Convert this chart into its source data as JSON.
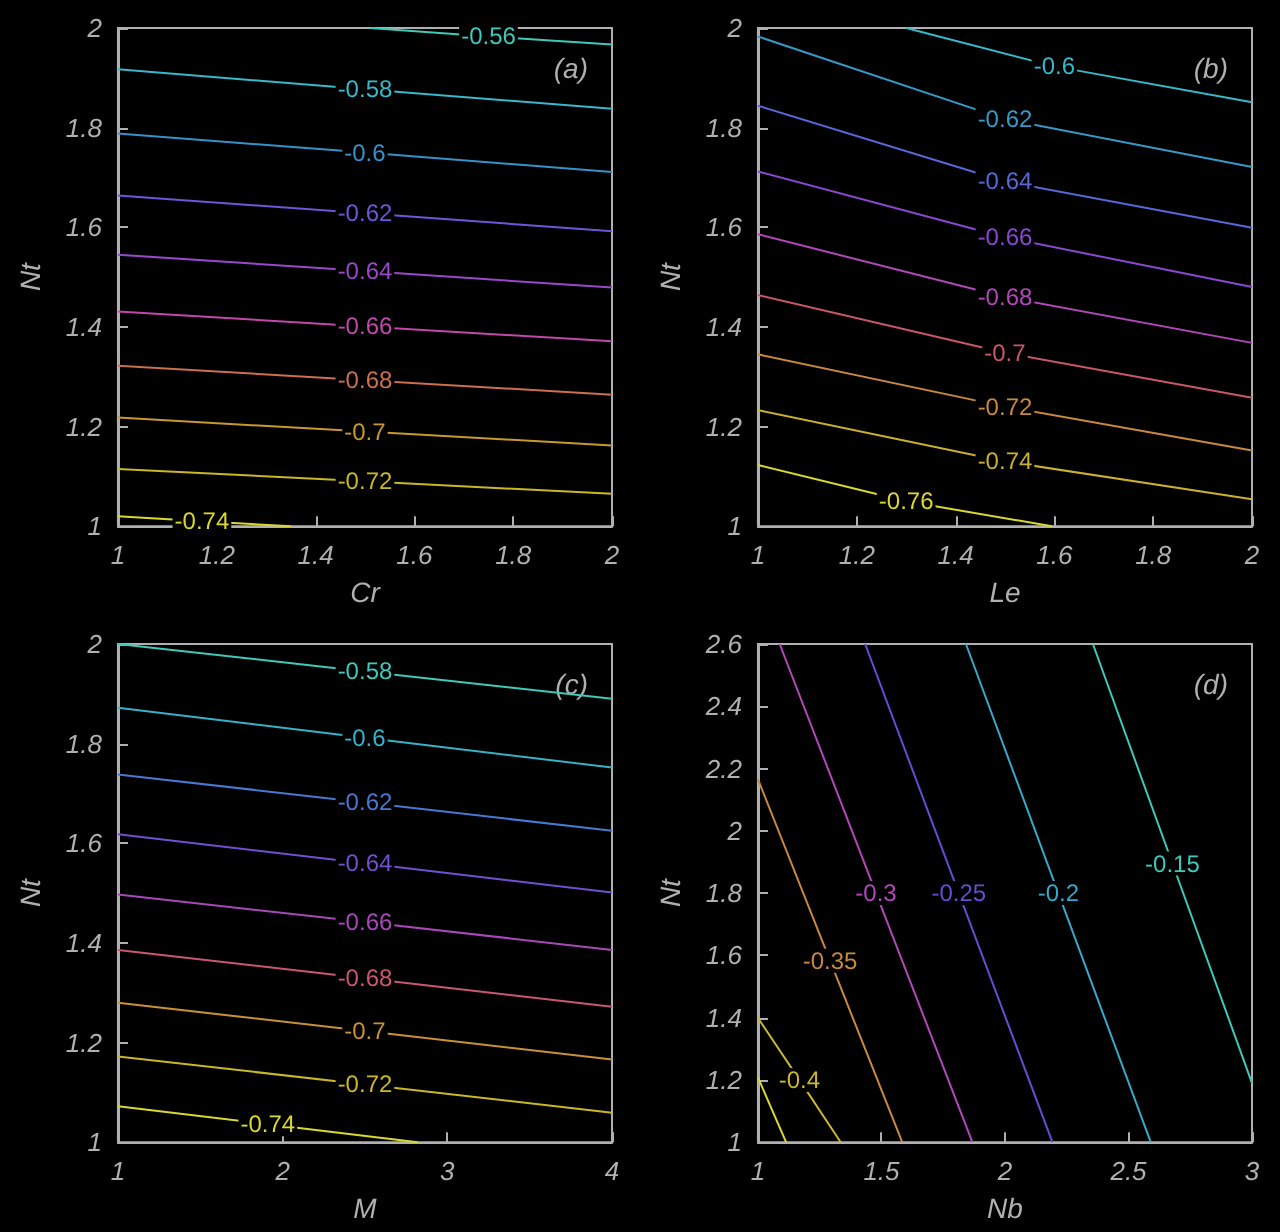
{
  "chart_data": [
    {
      "type": "line",
      "xlabel": "Cr",
      "ylabel": "Nt",
      "annotations": [
        "(a)"
      ],
      "xlim": [
        1,
        2
      ],
      "ylim": [
        1,
        2
      ],
      "xticks": [
        1,
        1.2,
        1.4,
        1.6,
        1.8,
        2
      ],
      "yticks": [
        1,
        1.2,
        1.4,
        1.6,
        1.8,
        2
      ],
      "grid": false,
      "legend": false,
      "marker": "none",
      "line_style": "solid",
      "data_labels": false,
      "series": [
        {
          "name": "-0.56",
          "color": "#40c8b8",
          "x": [
            1.51,
            1.75,
            2
          ],
          "values": [
            2,
            1.983,
            1.967
          ]
        },
        {
          "name": "-0.58",
          "color": "#38b8c8",
          "x": [
            1,
            1.5,
            2
          ],
          "values": [
            1.917,
            1.877,
            1.838
          ]
        },
        {
          "name": "-0.6",
          "color": "#3890c8",
          "x": [
            1,
            1.5,
            2
          ],
          "values": [
            1.788,
            1.75,
            1.711
          ]
        },
        {
          "name": "-0.62",
          "color": "#6a58d8",
          "x": [
            1,
            1.5,
            2
          ],
          "values": [
            1.664,
            1.628,
            1.592
          ]
        },
        {
          "name": "-0.64",
          "color": "#9848c8",
          "x": [
            1,
            1.5,
            2
          ],
          "values": [
            1.545,
            1.512,
            1.479
          ]
        },
        {
          "name": "-0.66",
          "color": "#c048a8",
          "x": [
            1,
            1.5,
            2
          ],
          "values": [
            1.431,
            1.401,
            1.371
          ]
        },
        {
          "name": "-0.68",
          "color": "#c87050",
          "x": [
            1,
            1.5,
            2
          ],
          "values": [
            1.322,
            1.293,
            1.264
          ]
        },
        {
          "name": "-0.7",
          "color": "#c89830",
          "x": [
            1,
            1.5,
            2
          ],
          "values": [
            1.218,
            1.19,
            1.162
          ]
        },
        {
          "name": "-0.72",
          "color": "#c8b828",
          "x": [
            1,
            1.5,
            2
          ],
          "values": [
            1.115,
            1.09,
            1.065
          ]
        },
        {
          "name": "-0.74",
          "color": "#d8d830",
          "x": [
            1,
            1.17,
            1.35
          ],
          "values": [
            1.02,
            1.01,
            1
          ]
        }
      ]
    },
    {
      "type": "line",
      "xlabel": "Le",
      "ylabel": "Nt",
      "annotations": [
        "(b)"
      ],
      "xlim": [
        1,
        2
      ],
      "ylim": [
        1,
        2
      ],
      "xticks": [
        1,
        1.2,
        1.4,
        1.6,
        1.8,
        2
      ],
      "yticks": [
        1,
        1.2,
        1.4,
        1.6,
        1.8,
        2
      ],
      "grid": false,
      "legend": false,
      "marker": "none",
      "line_style": "solid",
      "data_labels": false,
      "series": [
        {
          "name": "-0.6",
          "color": "#38b8c8",
          "x": [
            1.3,
            1.6,
            2
          ],
          "values": [
            2,
            1.923,
            1.851
          ]
        },
        {
          "name": "-0.62",
          "color": "#3898c8",
          "x": [
            1,
            1.5,
            2
          ],
          "values": [
            1.983,
            1.817,
            1.721
          ]
        },
        {
          "name": "-0.64",
          "color": "#5868d8",
          "x": [
            1,
            1.5,
            2
          ],
          "values": [
            1.844,
            1.692,
            1.599
          ]
        },
        {
          "name": "-0.66",
          "color": "#8848d0",
          "x": [
            1,
            1.5,
            2
          ],
          "values": [
            1.712,
            1.58,
            1.48
          ]
        },
        {
          "name": "-0.68",
          "color": "#b048b8",
          "x": [
            1,
            1.5,
            2
          ],
          "values": [
            1.586,
            1.46,
            1.368
          ]
        },
        {
          "name": "-0.7",
          "color": "#c85868",
          "x": [
            1,
            1.5,
            2
          ],
          "values": [
            1.464,
            1.348,
            1.258
          ]
        },
        {
          "name": "-0.72",
          "color": "#c88840",
          "x": [
            1,
            1.5,
            2
          ],
          "values": [
            1.345,
            1.24,
            1.152
          ]
        },
        {
          "name": "-0.74",
          "color": "#c8b030",
          "x": [
            1,
            1.5,
            2
          ],
          "values": [
            1.233,
            1.13,
            1.054
          ]
        },
        {
          "name": "-0.76",
          "color": "#d8d830",
          "x": [
            1,
            1.3,
            1.595
          ],
          "values": [
            1.123,
            1.05,
            1
          ]
        }
      ]
    },
    {
      "type": "line",
      "xlabel": "M",
      "ylabel": "Nt",
      "annotations": [
        "(c)"
      ],
      "xlim": [
        1,
        4
      ],
      "ylim": [
        1,
        2
      ],
      "xticks": [
        1,
        2,
        3,
        4
      ],
      "yticks": [
        1,
        1.2,
        1.4,
        1.6,
        1.8,
        2
      ],
      "grid": false,
      "legend": false,
      "marker": "none",
      "line_style": "solid",
      "data_labels": false,
      "series": [
        {
          "name": "-0.58",
          "color": "#40c8b8",
          "x": [
            1,
            2.5,
            4
          ],
          "values": [
            2,
            1.945,
            1.89
          ]
        },
        {
          "name": "-0.6",
          "color": "#38b0c8",
          "x": [
            1,
            2.5,
            4
          ],
          "values": [
            1.872,
            1.812,
            1.752
          ]
        },
        {
          "name": "-0.62",
          "color": "#4878d0",
          "x": [
            1,
            2.5,
            4
          ],
          "values": [
            1.738,
            1.682,
            1.625
          ]
        },
        {
          "name": "-0.64",
          "color": "#7050d0",
          "x": [
            1,
            2.5,
            4
          ],
          "values": [
            1.618,
            1.56,
            1.501
          ]
        },
        {
          "name": "-0.66",
          "color": "#a848b8",
          "x": [
            1,
            2.5,
            4
          ],
          "values": [
            1.497,
            1.442,
            1.386
          ]
        },
        {
          "name": "-0.68",
          "color": "#c85870",
          "x": [
            1,
            2.5,
            4
          ],
          "values": [
            1.386,
            1.329,
            1.272
          ]
        },
        {
          "name": "-0.7",
          "color": "#c89038",
          "x": [
            1,
            2.5,
            4
          ],
          "values": [
            1.28,
            1.223,
            1.166
          ]
        },
        {
          "name": "-0.72",
          "color": "#c8b828",
          "x": [
            1,
            2.5,
            4
          ],
          "values": [
            1.172,
            1.116,
            1.059
          ]
        },
        {
          "name": "-0.74",
          "color": "#d8d830",
          "x": [
            1,
            1.91,
            2.82
          ],
          "values": [
            1.072,
            1.036,
            1
          ]
        }
      ]
    },
    {
      "type": "line",
      "xlabel": "Nb",
      "ylabel": "Nt",
      "annotations": [
        "(d)"
      ],
      "xlim": [
        1,
        3
      ],
      "ylim": [
        1,
        2.6
      ],
      "xticks": [
        1,
        1.5,
        2,
        2.5,
        3
      ],
      "yticks": [
        1,
        1.2,
        1.4,
        1.6,
        1.8,
        2,
        2.2,
        2.4,
        2.6
      ],
      "grid": false,
      "legend": false,
      "marker": "none",
      "line_style": "solid",
      "data_labels": false,
      "series": [
        {
          "name": "-0.15",
          "color": "#40c8b8",
          "x": [
            2.356,
            2.678,
            3
          ],
          "values": [
            2.6,
            1.895,
            1.19
          ]
        },
        {
          "name": "-0.2",
          "color": "#38a8c8",
          "x": [
            1.842,
            2.216,
            2.59
          ],
          "values": [
            2.6,
            1.8,
            1
          ]
        },
        {
          "name": "-0.25",
          "color": "#6050d0",
          "x": [
            1.434,
            1.813,
            2.192
          ],
          "values": [
            2.6,
            1.8,
            1
          ]
        },
        {
          "name": "-0.3",
          "color": "#b048b8",
          "x": [
            1.088,
            1.478,
            1.868
          ],
          "values": [
            2.6,
            1.8,
            1
          ]
        },
        {
          "name": "-0.35",
          "color": "#c88840",
          "x": [
            1,
            1.292,
            1.584
          ],
          "values": [
            2.166,
            1.583,
            1
          ]
        },
        {
          "name": "-0.4",
          "color": "#c8b830",
          "x": [
            1,
            1.168,
            1.335
          ],
          "values": [
            1.399,
            1.2,
            1
          ]
        },
        {
          "color": "#d8d830",
          "x": [
            1,
            1.057,
            1.114
          ],
          "values": [
            1.208,
            1.104,
            1
          ]
        }
      ]
    }
  ]
}
